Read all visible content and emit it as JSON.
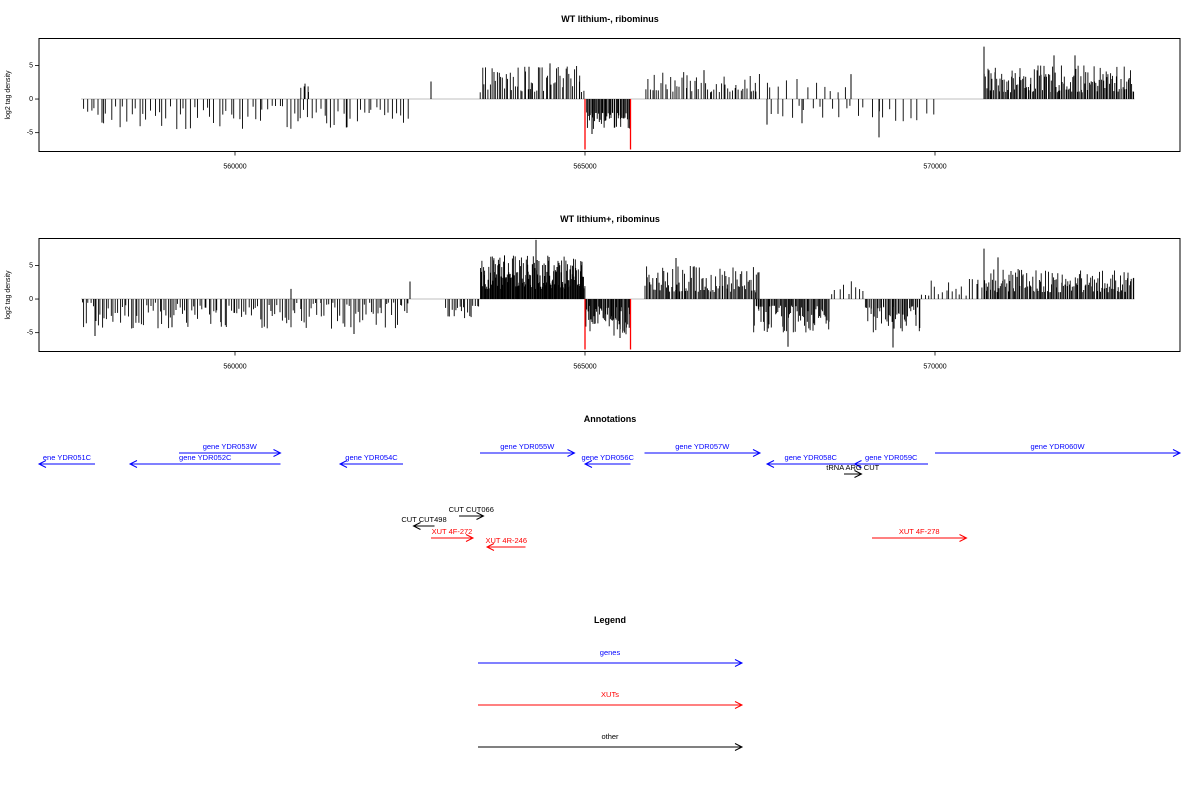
{
  "chart_data": [
    {
      "type": "bar",
      "title": "WT lithium-, ribominus",
      "ylabel": "log2 tag density",
      "xlim": [
        557200,
        573500
      ],
      "ylim": [
        -7.8,
        9
      ],
      "yticks": [
        -5,
        0,
        5
      ],
      "xticks": [
        560000,
        565000,
        570000
      ],
      "grid": false,
      "segments": [
        {
          "x0": 557800,
          "x1": 562500,
          "sign": -1,
          "density": 0.25,
          "min": 1,
          "max": 4.5,
          "peaks": [
            [
              558100,
              3.5
            ],
            [
              560900,
              3.3
            ],
            [
              561600,
              4.2
            ]
          ]
        },
        {
          "x0": 560900,
          "x1": 561100,
          "sign": 1,
          "density": 0.3,
          "min": 0.5,
          "max": 2,
          "peaks": [
            [
              561000,
              2.3
            ]
          ]
        },
        {
          "x0": 562800,
          "x1": 562800,
          "sign": 1,
          "density": 1,
          "min": 2.6,
          "max": 2.6,
          "peaks": [
            [
              562800,
              2.6
            ]
          ]
        },
        {
          "x0": 563500,
          "x1": 565000,
          "sign": 1,
          "density": 0.55,
          "min": 1,
          "max": 5,
          "peaks": [
            [
              564500,
              5.3
            ],
            [
              564200,
              4.8
            ]
          ]
        },
        {
          "x0": 565000,
          "x1": 565650,
          "sign": -1,
          "density": 1,
          "min": 2,
          "max": 4.5,
          "peaks": [
            [
              565100,
              5.2
            ]
          ]
        },
        {
          "x0": 565850,
          "x1": 567500,
          "sign": 1,
          "density": 0.45,
          "min": 1,
          "max": 4,
          "peaks": [
            [
              566700,
              4.3
            ]
          ]
        },
        {
          "x0": 567600,
          "x1": 570000,
          "sign": -1,
          "density": 0.15,
          "min": 1,
          "max": 3.5,
          "peaks": [
            [
              567600,
              3.8
            ],
            [
              568100,
              3.6
            ],
            [
              569200,
              5.7
            ]
          ]
        },
        {
          "x0": 567400,
          "x1": 568800,
          "sign": 1,
          "density": 0.12,
          "min": 1,
          "max": 3,
          "peaks": [
            [
              568800,
              3.7
            ]
          ]
        },
        {
          "x0": 570700,
          "x1": 572850,
          "sign": 1,
          "density": 0.9,
          "min": 1,
          "max": 5,
          "peaks": [
            [
              570700,
              7.8
            ],
            [
              571700,
              6.5
            ],
            [
              572000,
              6.5
            ]
          ]
        }
      ],
      "highlights": [
        {
          "x": 565000,
          "y": -7.5,
          "color": "#ff0000"
        },
        {
          "x": 565650,
          "y": -7.5,
          "color": "#ff0000"
        }
      ]
    },
    {
      "type": "bar",
      "title": "WT lithium+, ribominus",
      "ylabel": "log2 tag density",
      "xlim": [
        557200,
        573500
      ],
      "ylim": [
        -7.8,
        9
      ],
      "yticks": [
        -5,
        0,
        5
      ],
      "xticks": [
        560000,
        565000,
        570000
      ],
      "grid": false,
      "segments": [
        {
          "x0": 557800,
          "x1": 562500,
          "sign": -1,
          "density": 0.45,
          "min": 0.5,
          "max": 4.5,
          "peaks": [
            [
              558000,
              5.5
            ],
            [
              559100,
              4.2
            ],
            [
              561700,
              5.2
            ]
          ]
        },
        {
          "x0": 560800,
          "x1": 560800,
          "sign": 1,
          "density": 1,
          "min": 1.5,
          "max": 1.5,
          "peaks": [
            [
              560800,
              1.5
            ]
          ]
        },
        {
          "x0": 562500,
          "x1": 562500,
          "sign": 1,
          "density": 1,
          "min": 2.6,
          "max": 2.6,
          "peaks": [
            [
              562500,
              2.6
            ]
          ]
        },
        {
          "x0": 563000,
          "x1": 563500,
          "sign": -1,
          "density": 0.5,
          "min": 1,
          "max": 3,
          "peaks": []
        },
        {
          "x0": 563500,
          "x1": 565000,
          "sign": 1,
          "density": 1.6,
          "min": 1.5,
          "max": 6.5,
          "peaks": [
            [
              564300,
              8.8
            ],
            [
              563850,
              6.5
            ]
          ]
        },
        {
          "x0": 565000,
          "x1": 565650,
          "sign": -1,
          "density": 1.2,
          "min": 1,
          "max": 5.5,
          "peaks": [
            [
              565500,
              5.8
            ]
          ]
        },
        {
          "x0": 565850,
          "x1": 567500,
          "sign": 1,
          "density": 0.8,
          "min": 1,
          "max": 5,
          "peaks": [
            [
              566300,
              6.1
            ]
          ]
        },
        {
          "x0": 567400,
          "x1": 568500,
          "sign": -1,
          "density": 0.9,
          "min": 1,
          "max": 5,
          "peaks": [
            [
              567900,
              7.1
            ]
          ]
        },
        {
          "x0": 568500,
          "x1": 569000,
          "sign": 1,
          "density": 0.25,
          "min": 0.5,
          "max": 3,
          "peaks": []
        },
        {
          "x0": 569000,
          "x1": 569800,
          "sign": -1,
          "density": 0.8,
          "min": 1,
          "max": 5,
          "peaks": [
            [
              569400,
              7.2
            ]
          ]
        },
        {
          "x0": 569800,
          "x1": 570700,
          "sign": 1,
          "density": 0.3,
          "min": 0.5,
          "max": 3,
          "peaks": []
        },
        {
          "x0": 570700,
          "x1": 572850,
          "sign": 1,
          "density": 0.9,
          "min": 1,
          "max": 4.5,
          "peaks": [
            [
              570700,
              7.5
            ],
            [
              570900,
              6.2
            ]
          ]
        }
      ],
      "highlights": [
        {
          "x": 565000,
          "y": -7.5,
          "color": "#ff0000"
        },
        {
          "x": 565650,
          "y": -7.5,
          "color": "#ff0000"
        }
      ]
    }
  ],
  "annotations": {
    "title": "Annotations",
    "xlim": [
      557200,
      573500
    ],
    "features": [
      {
        "label": "ene YDR051C",
        "x0": 557200,
        "x1": 558000,
        "row": 1,
        "strand": "-",
        "color": "#0000ff"
      },
      {
        "label": "gene YDR052C",
        "x0": 558500,
        "x1": 560650,
        "row": 1,
        "strand": "-",
        "color": "#0000ff"
      },
      {
        "label": "gene YDR053W",
        "x0": 559200,
        "x1": 560650,
        "row": 0,
        "strand": "+",
        "color": "#0000ff"
      },
      {
        "label": "gene YDR054C",
        "x0": 561500,
        "x1": 562400,
        "row": 1,
        "strand": "-",
        "color": "#0000ff"
      },
      {
        "label": "gene YDR055W",
        "x0": 563500,
        "x1": 564850,
        "row": 0,
        "strand": "+",
        "color": "#0000ff"
      },
      {
        "label": "gene YDR056C",
        "x0": 565000,
        "x1": 565650,
        "row": 1,
        "strand": "-",
        "color": "#0000ff"
      },
      {
        "label": "gene YDR057W",
        "x0": 565850,
        "x1": 567500,
        "row": 0,
        "strand": "+",
        "color": "#0000ff"
      },
      {
        "label": "gene YDR058C",
        "x0": 567600,
        "x1": 568850,
        "row": 1,
        "strand": "-",
        "color": "#0000ff"
      },
      {
        "label": "gene YDR059C",
        "x0": 568850,
        "x1": 569900,
        "row": 1,
        "strand": "-",
        "color": "#0000ff"
      },
      {
        "label": "gene YDR060W",
        "x0": 570000,
        "x1": 573500,
        "row": 0,
        "strand": "+",
        "color": "#0000ff"
      },
      {
        "label": "tRNA ARG CUT",
        "x0": 568700,
        "x1": 568950,
        "row": 2,
        "strand": "+",
        "color": "#000000"
      },
      {
        "label": "CUT CUT066",
        "x0": 563200,
        "x1": 563550,
        "row": 4,
        "strand": "+",
        "color": "#000000"
      },
      {
        "label": "CUT CUT498",
        "x0": 562550,
        "x1": 562850,
        "row": 5,
        "strand": "-",
        "color": "#000000"
      },
      {
        "label": "XUT 4F-272",
        "x0": 562800,
        "x1": 563400,
        "row": 6,
        "strand": "+",
        "color": "#ff0000"
      },
      {
        "label": "XUT 4R-246",
        "x0": 563600,
        "x1": 564150,
        "row": 7,
        "strand": "-",
        "color": "#ff0000"
      },
      {
        "label": "XUT 4F-278",
        "x0": 569100,
        "x1": 570450,
        "row": 6,
        "strand": "+",
        "color": "#ff0000"
      }
    ]
  },
  "legend": {
    "title": "Legend",
    "items": [
      {
        "label": "genes",
        "color": "#0000ff"
      },
      {
        "label": "XUTs",
        "color": "#ff0000"
      },
      {
        "label": "other",
        "color": "#000000"
      }
    ]
  }
}
